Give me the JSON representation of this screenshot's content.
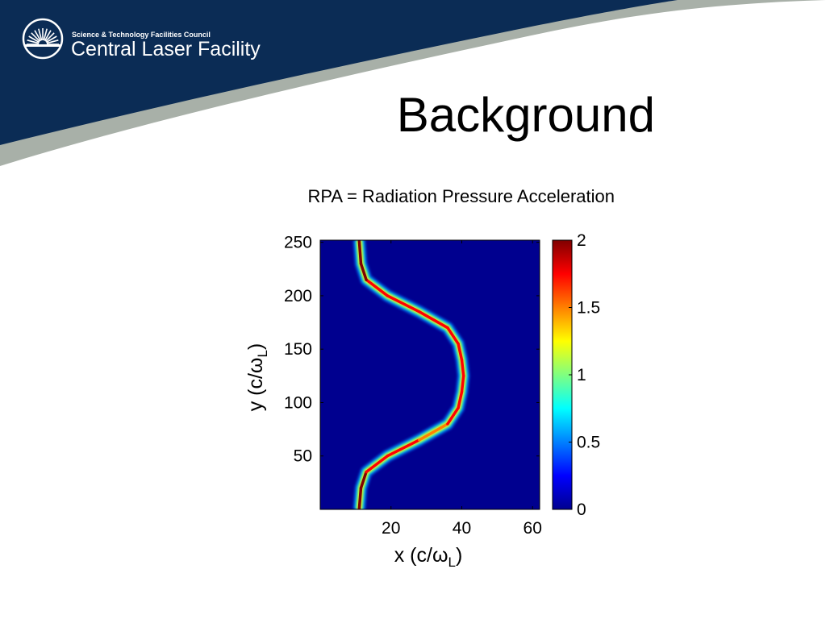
{
  "header": {
    "org_sub": "Science & Technology Facilities Council",
    "org_main": "Central Laser Facility",
    "logo_icon": "sunburst-logo-icon",
    "colors": {
      "navy": "#0b2c55",
      "swoosh": "#a8b0a8"
    }
  },
  "slide": {
    "title": "Background",
    "subtitle": "RPA = Radiation Pressure Acceleration"
  },
  "chart_data": {
    "type": "heatmap",
    "title": "",
    "xlabel": "x (c/ωL)",
    "xlabel_main": "x (c/",
    "xlabel_greek": "ω",
    "xlabel_sub": "L",
    "xlabel_close": ")",
    "ylabel_main": "y (c/",
    "ylabel_greek": "ω",
    "ylabel_sub": "L",
    "ylabel_close": ")",
    "xlim": [
      0,
      62
    ],
    "ylim": [
      0,
      252
    ],
    "xticks": [
      20,
      40,
      60
    ],
    "yticks": [
      50,
      100,
      150,
      200,
      250
    ],
    "colorbar": {
      "min": 0,
      "max": 2,
      "ticks": [
        0,
        0.5,
        1,
        1.5,
        2
      ],
      "tick_labels": [
        "0",
        "0.5",
        "1",
        "1.5",
        "2"
      ]
    },
    "background_value": 0,
    "ridge": [
      {
        "y": 0,
        "x": 11,
        "value": 2
      },
      {
        "y": 20,
        "x": 11.5,
        "value": 2
      },
      {
        "y": 35,
        "x": 13,
        "value": 1.9
      },
      {
        "y": 50,
        "x": 19,
        "value": 1.7
      },
      {
        "y": 65,
        "x": 28,
        "value": 1.6
      },
      {
        "y": 80,
        "x": 36,
        "value": 1.6
      },
      {
        "y": 95,
        "x": 39,
        "value": 1.7
      },
      {
        "y": 110,
        "x": 40,
        "value": 1.6
      },
      {
        "y": 125,
        "x": 40.5,
        "value": 1.7
      },
      {
        "y": 140,
        "x": 40,
        "value": 1.6
      },
      {
        "y": 155,
        "x": 39,
        "value": 1.7
      },
      {
        "y": 170,
        "x": 36,
        "value": 1.6
      },
      {
        "y": 185,
        "x": 28,
        "value": 1.7
      },
      {
        "y": 200,
        "x": 19,
        "value": 1.8
      },
      {
        "y": 215,
        "x": 13,
        "value": 1.9
      },
      {
        "y": 230,
        "x": 11.5,
        "value": 2
      },
      {
        "y": 252,
        "x": 11,
        "value": 2
      }
    ],
    "colors": {
      "background": "#00008f",
      "colormap": [
        "#00008f",
        "#0000ff",
        "#0080ff",
        "#00ffff",
        "#80ff80",
        "#ffff00",
        "#ff8000",
        "#ff0000",
        "#800000"
      ]
    }
  }
}
